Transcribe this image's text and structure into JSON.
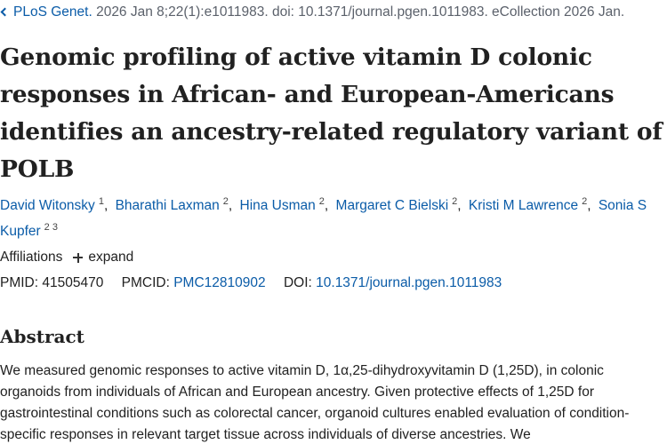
{
  "citation": {
    "journal": "PLoS Genet.",
    "details": " 2026 Jan 8;22(1):e1011983. doi: 10.1371/journal.pgen.1011983. eCollection 2026 Jan."
  },
  "title": "Genomic profiling of active vitamin D colonic responses in African- and European-Americans identifies an ancestry-related regulatory variant of POLB",
  "authors": [
    {
      "name": "David Witonsky",
      "aff": "1"
    },
    {
      "name": "Bharathi Laxman",
      "aff": "2"
    },
    {
      "name": "Hina Usman",
      "aff": "2"
    },
    {
      "name": "Margaret C Bielski",
      "aff": "2"
    },
    {
      "name": "Kristi M Lawrence",
      "aff": "2"
    },
    {
      "name": "Sonia S Kupfer",
      "aff": "2 3"
    }
  ],
  "affiliations": {
    "label": "Affiliations",
    "expand_label": "expand"
  },
  "ids": {
    "pmid_label": "PMID:",
    "pmid": "41505470",
    "pmcid_label": "PMCID:",
    "pmcid": "PMC12810902",
    "doi_label": "DOI:",
    "doi": "10.1371/journal.pgen.1011983"
  },
  "abstract": {
    "heading": "Abstract",
    "text": "We measured genomic responses to active vitamin D, 1α,25-dihydroxyvitamin D (1,25D), in colonic organoids from individuals of African and European ancestry. Given protective effects of 1,25D for gastrointestinal conditions such as colorectal cancer, organoid cultures enabled evaluation of condition-specific responses in relevant target tissue across individuals of diverse ancestries. We"
  },
  "colors": {
    "link": "#0b5ca8",
    "text": "#212121",
    "muted": "#5b616b"
  }
}
